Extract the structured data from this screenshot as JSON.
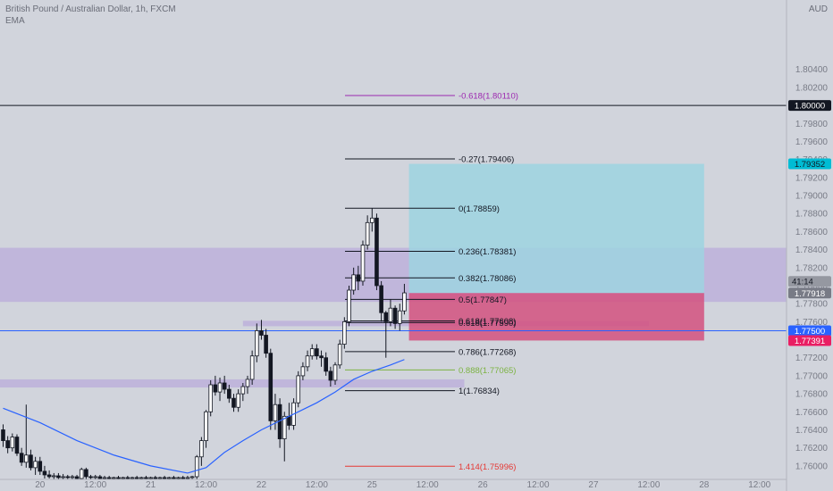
{
  "header": {
    "symbol_title": "British Pound / Australian Dollar, 1h, FXCM",
    "indicator": "EMA"
  },
  "colors": {
    "background": "#d1d4dc",
    "up_candle": "#ffffff",
    "down_candle": "#131722",
    "ema": "#2962ff",
    "zone": "#b39ddb",
    "target_zone": "#9ed4e0",
    "stop_zone": "#d4517f"
  },
  "chart_data": {
    "type": "candlestick",
    "title": "British Pound / Australian Dollar, 1h, FXCM",
    "y_axis": {
      "unit": "AUD",
      "range": [
        1.7585,
        1.8117
      ],
      "ticks": [
        "1.80400",
        "1.80200",
        "1.80000",
        "1.79800",
        "1.79600",
        "1.79400",
        "1.79200",
        "1.79000",
        "1.78800",
        "1.78600",
        "1.78400",
        "1.78200",
        "1.78000",
        "1.77800",
        "1.77600",
        "1.77400",
        "1.77200",
        "1.77000",
        "1.76800",
        "1.76600",
        "1.76400",
        "1.76200",
        "1.76000"
      ]
    },
    "x_axis": {
      "ticks": [
        {
          "label": "20",
          "bar": 8
        },
        {
          "label": "12:00",
          "bar": 20
        },
        {
          "label": "21",
          "bar": 32
        },
        {
          "label": "12:00",
          "bar": 44
        },
        {
          "label": "22",
          "bar": 56
        },
        {
          "label": "12:00",
          "bar": 68
        },
        {
          "label": "25",
          "bar": 80
        },
        {
          "label": "12:00",
          "bar": 92
        },
        {
          "label": "26",
          "bar": 104
        },
        {
          "label": "12:00",
          "bar": 116
        },
        {
          "label": "27",
          "bar": 128
        },
        {
          "label": "12:00",
          "bar": 140
        },
        {
          "label": "28",
          "bar": 152
        },
        {
          "label": "12:00",
          "bar": 164
        }
      ]
    },
    "candles": [
      [
        1.764,
        1.7646,
        1.7621,
        1.7628
      ],
      [
        1.7628,
        1.7633,
        1.7614,
        1.762
      ],
      [
        1.762,
        1.7636,
        1.7616,
        1.7632
      ],
      [
        1.7632,
        1.7635,
        1.7611,
        1.7614
      ],
      [
        1.7614,
        1.762,
        1.76,
        1.7604
      ],
      [
        1.7604,
        1.7668,
        1.7598,
        1.7612
      ],
      [
        1.7612,
        1.7618,
        1.7595,
        1.7598
      ],
      [
        1.7598,
        1.761,
        1.759,
        1.7605
      ],
      [
        1.7605,
        1.761,
        1.759,
        1.7594
      ],
      [
        1.7594,
        1.76,
        1.7586,
        1.759
      ],
      [
        1.759,
        1.7595,
        1.7586,
        1.7588
      ],
      [
        1.7588,
        1.7592,
        1.7585,
        1.7589
      ],
      [
        1.7589,
        1.7592,
        1.7585,
        1.7587
      ],
      [
        1.7587,
        1.7591,
        1.7585,
        1.7588
      ],
      [
        1.7588,
        1.759,
        1.7585,
        1.7587
      ],
      [
        1.7587,
        1.759,
        1.7585,
        1.7588
      ],
      [
        1.7588,
        1.759,
        1.7585,
        1.7586
      ],
      [
        1.7586,
        1.7598,
        1.7585,
        1.7596
      ],
      [
        1.7596,
        1.7598,
        1.7585,
        1.7588
      ],
      [
        1.7588,
        1.759,
        1.7585,
        1.7587
      ],
      [
        1.7587,
        1.759,
        1.7585,
        1.7588
      ],
      [
        1.7588,
        1.759,
        1.7585,
        1.7586
      ],
      [
        1.7586,
        1.7589,
        1.7585,
        1.7587
      ],
      [
        1.7587,
        1.7589,
        1.7585,
        1.7586
      ],
      [
        1.7586,
        1.7588,
        1.7585,
        1.7587
      ],
      [
        1.7587,
        1.7589,
        1.7585,
        1.7586
      ],
      [
        1.7586,
        1.7588,
        1.7585,
        1.7587
      ],
      [
        1.7587,
        1.7589,
        1.7585,
        1.7586
      ],
      [
        1.7586,
        1.7588,
        1.7585,
        1.7587
      ],
      [
        1.7587,
        1.7589,
        1.7585,
        1.7586
      ],
      [
        1.7586,
        1.7588,
        1.7585,
        1.7587
      ],
      [
        1.7587,
        1.7589,
        1.7585,
        1.7586
      ],
      [
        1.7586,
        1.7588,
        1.7585,
        1.7587
      ],
      [
        1.7587,
        1.7589,
        1.7585,
        1.7586
      ],
      [
        1.7586,
        1.7588,
        1.7585,
        1.7587
      ],
      [
        1.7587,
        1.7589,
        1.7585,
        1.7586
      ],
      [
        1.7586,
        1.7588,
        1.7585,
        1.7587
      ],
      [
        1.7587,
        1.7589,
        1.7585,
        1.7586
      ],
      [
        1.7586,
        1.7588,
        1.7585,
        1.7587
      ],
      [
        1.7587,
        1.7589,
        1.7585,
        1.7586
      ],
      [
        1.7586,
        1.7589,
        1.7585,
        1.7587
      ],
      [
        1.7587,
        1.7589,
        1.7585,
        1.7588
      ],
      [
        1.7588,
        1.7612,
        1.7585,
        1.761
      ],
      [
        1.761,
        1.7632,
        1.76,
        1.7628
      ],
      [
        1.7628,
        1.7662,
        1.762,
        1.766
      ],
      [
        1.766,
        1.7695,
        1.7655,
        1.769
      ],
      [
        1.769,
        1.77,
        1.7678,
        1.7682
      ],
      [
        1.7682,
        1.7698,
        1.7672,
        1.7692
      ],
      [
        1.7692,
        1.77,
        1.768,
        1.7685
      ],
      [
        1.7685,
        1.769,
        1.767,
        1.7675
      ],
      [
        1.7675,
        1.768,
        1.766,
        1.7665
      ],
      [
        1.7665,
        1.7685,
        1.766,
        1.768
      ],
      [
        1.768,
        1.7692,
        1.7672,
        1.7688
      ],
      [
        1.7688,
        1.77,
        1.768,
        1.7696
      ],
      [
        1.7696,
        1.7728,
        1.769,
        1.7722
      ],
      [
        1.7722,
        1.7758,
        1.7715,
        1.775
      ],
      [
        1.775,
        1.7762,
        1.774,
        1.7745
      ],
      [
        1.7745,
        1.7752,
        1.772,
        1.7725
      ],
      [
        1.7725,
        1.773,
        1.764,
        1.765
      ],
      [
        1.765,
        1.768,
        1.764,
        1.7668
      ],
      [
        1.7668,
        1.7675,
        1.762,
        1.763
      ],
      [
        1.763,
        1.766,
        1.7605,
        1.7655
      ],
      [
        1.7655,
        1.767,
        1.764,
        1.7645
      ],
      [
        1.7645,
        1.7675,
        1.764,
        1.767
      ],
      [
        1.767,
        1.7705,
        1.7665,
        1.77
      ],
      [
        1.77,
        1.7715,
        1.7695,
        1.771
      ],
      [
        1.771,
        1.7728,
        1.7705,
        1.7722
      ],
      [
        1.7722,
        1.7735,
        1.7718,
        1.773
      ],
      [
        1.773,
        1.7735,
        1.7718,
        1.7722
      ],
      [
        1.7722,
        1.7728,
        1.771,
        1.772
      ],
      [
        1.772,
        1.7726,
        1.77,
        1.7705
      ],
      [
        1.7705,
        1.771,
        1.7688,
        1.7695
      ],
      [
        1.7695,
        1.7715,
        1.769,
        1.7712
      ],
      [
        1.7712,
        1.774,
        1.7708,
        1.7735
      ],
      [
        1.7735,
        1.7765,
        1.773,
        1.776
      ],
      [
        1.776,
        1.78,
        1.7755,
        1.7795
      ],
      [
        1.7795,
        1.782,
        1.779,
        1.7812
      ],
      [
        1.7812,
        1.7822,
        1.7795,
        1.7805
      ],
      [
        1.7805,
        1.785,
        1.78,
        1.7845
      ],
      [
        1.7845,
        1.7878,
        1.784,
        1.787
      ],
      [
        1.787,
        1.7886,
        1.786,
        1.7875
      ],
      [
        1.7875,
        1.788,
        1.7795,
        1.78
      ],
      [
        1.78,
        1.7805,
        1.776,
        1.777
      ],
      [
        1.777,
        1.7772,
        1.772,
        1.776
      ],
      [
        1.776,
        1.7785,
        1.7755,
        1.7775
      ],
      [
        1.7775,
        1.7778,
        1.7752,
        1.7758
      ],
      [
        1.7758,
        1.778,
        1.775,
        1.7772
      ],
      [
        1.7772,
        1.7802,
        1.7768,
        1.7792
      ]
    ],
    "ema": [
      [
        0,
        1.7664
      ],
      [
        8,
        1.7648
      ],
      [
        16,
        1.7628
      ],
      [
        24,
        1.7612
      ],
      [
        32,
        1.76
      ],
      [
        40,
        1.7592
      ],
      [
        44,
        1.7598
      ],
      [
        48,
        1.7615
      ],
      [
        52,
        1.7628
      ],
      [
        56,
        1.764
      ],
      [
        60,
        1.765
      ],
      [
        64,
        1.766
      ],
      [
        68,
        1.767
      ],
      [
        72,
        1.7682
      ],
      [
        76,
        1.7696
      ],
      [
        80,
        1.7705
      ],
      [
        84,
        1.7712
      ],
      [
        87,
        1.7718
      ]
    ],
    "horizontal_lines": [
      {
        "price": 1.8,
        "label": "1.80000",
        "color": "#131722"
      },
      {
        "price": 1.775,
        "label": "1.77500",
        "color": "#2962ff"
      }
    ],
    "fib_levels": [
      {
        "price": 1.8011,
        "label": "-0.618(1.80110)",
        "color": "#9c27b0"
      },
      {
        "price": 1.79406,
        "label": "-0.27(1.79406)",
        "color": "#131722"
      },
      {
        "price": 1.78859,
        "label": "0(1.78859)",
        "color": "#131722"
      },
      {
        "price": 1.78381,
        "label": "0.236(1.78381)",
        "color": "#131722"
      },
      {
        "price": 1.78086,
        "label": "0.382(1.78086)",
        "color": "#131722"
      },
      {
        "price": 1.77847,
        "label": "0.5(1.77847)",
        "color": "#131722"
      },
      {
        "price": 1.77608,
        "label": "0.618(1.77608)",
        "color": "#131722"
      },
      {
        "price": 1.7759,
        "label": "0.618(1.77590)",
        "color": "#131722"
      },
      {
        "price": 1.77268,
        "label": "0.786(1.77268)",
        "color": "#131722"
      },
      {
        "price": 1.77065,
        "label": "0.888(1.77065)",
        "color": "#7cb342"
      },
      {
        "price": 1.76834,
        "label": "1(1.76834)",
        "color": "#131722"
      },
      {
        "price": 1.75996,
        "label": "1.414(1.75996)",
        "color": "#e53935"
      }
    ],
    "zones": [
      {
        "from_bar": -8,
        "to_bar": 174,
        "top": 1.7842,
        "bottom": 1.7782,
        "color": "#b39ddb"
      },
      {
        "from_bar": 52,
        "to_bar": 140,
        "top": 1.7761,
        "bottom": 1.7755,
        "color": "#b39ddb"
      },
      {
        "from_bar": -8,
        "to_bar": 100,
        "top": 1.7696,
        "bottom": 1.7687,
        "color": "#b39ddb"
      }
    ],
    "position": {
      "from_bar": 88,
      "to_bar": 152,
      "target": 1.79352,
      "entry": 1.77918,
      "stop": 1.77391
    },
    "price_badges": [
      {
        "price": 1.8,
        "label": "1.80000",
        "bg": "#131722",
        "fg": "#ffffff"
      },
      {
        "price": 1.79352,
        "label": "1.79352",
        "bg": "#00bcd4",
        "fg": "#131722"
      },
      {
        "price": 1.77918,
        "label": "1.77918",
        "bg": "#787b86",
        "fg": "#ffffff",
        "note": "41:14"
      },
      {
        "price": 1.775,
        "label": "1.77500",
        "bg": "#2962ff",
        "fg": "#ffffff"
      },
      {
        "price": 1.77391,
        "label": "1.77391",
        "bg": "#e91e63",
        "fg": "#ffffff"
      }
    ]
  }
}
